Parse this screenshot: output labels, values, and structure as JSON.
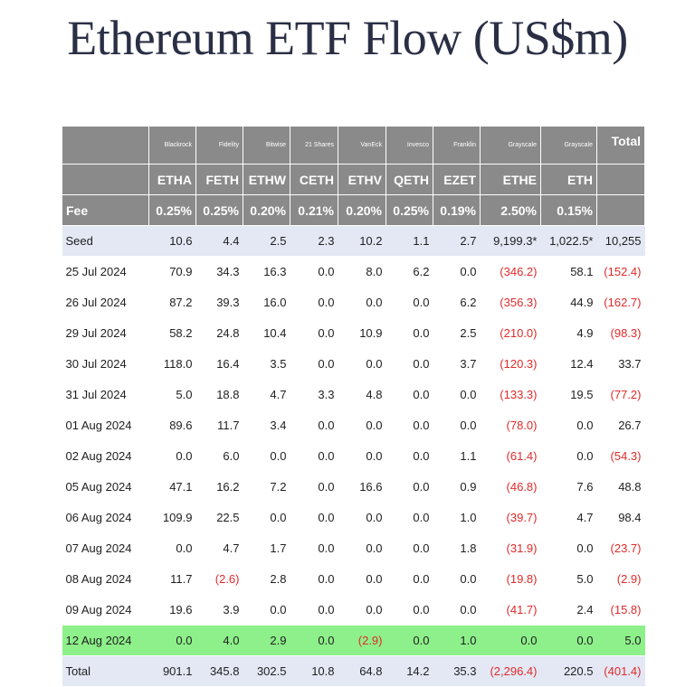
{
  "title": "Ethereum ETF Flow (US$m)",
  "table": {
    "issuers": [
      "Blackrock",
      "Fidelity",
      "Bitwise",
      "21 Shares",
      "VanEck",
      "Invesco",
      "Franklin",
      "Grayscale",
      "Grayscale"
    ],
    "total_header": "Total",
    "tickers": [
      "ETHA",
      "FETH",
      "ETHW",
      "CETH",
      "ETHV",
      "QETH",
      "EZET",
      "ETHE",
      "ETH"
    ],
    "fee_label": "Fee",
    "fees": [
      "0.25%",
      "0.25%",
      "0.20%",
      "0.21%",
      "0.20%",
      "0.25%",
      "0.19%",
      "2.50%",
      "0.15%"
    ],
    "rows": [
      {
        "label": "Seed",
        "values": [
          "10.6",
          "4.4",
          "2.5",
          "2.3",
          "10.2",
          "1.1",
          "2.7",
          "9,199.3*",
          "1,022.5*",
          "10,255"
        ]
      },
      {
        "label": "25 Jul 2024",
        "values": [
          "70.9",
          "34.3",
          "16.3",
          "0.0",
          "8.0",
          "6.2",
          "0.0",
          "(346.2)",
          "58.1",
          "(152.4)"
        ]
      },
      {
        "label": "26 Jul 2024",
        "values": [
          "87.2",
          "39.3",
          "16.0",
          "0.0",
          "0.0",
          "0.0",
          "6.2",
          "(356.3)",
          "44.9",
          "(162.7)"
        ]
      },
      {
        "label": "29 Jul 2024",
        "values": [
          "58.2",
          "24.8",
          "10.4",
          "0.0",
          "10.9",
          "0.0",
          "2.5",
          "(210.0)",
          "4.9",
          "(98.3)"
        ]
      },
      {
        "label": "30 Jul 2024",
        "values": [
          "118.0",
          "16.4",
          "3.5",
          "0.0",
          "0.0",
          "0.0",
          "3.7",
          "(120.3)",
          "12.4",
          "33.7"
        ]
      },
      {
        "label": "31 Jul 2024",
        "values": [
          "5.0",
          "18.8",
          "4.7",
          "3.3",
          "4.8",
          "0.0",
          "0.0",
          "(133.3)",
          "19.5",
          "(77.2)"
        ]
      },
      {
        "label": "01 Aug 2024",
        "values": [
          "89.6",
          "11.7",
          "3.4",
          "0.0",
          "0.0",
          "0.0",
          "0.0",
          "(78.0)",
          "0.0",
          "26.7"
        ]
      },
      {
        "label": "02 Aug 2024",
        "values": [
          "0.0",
          "6.0",
          "0.0",
          "0.0",
          "0.0",
          "0.0",
          "1.1",
          "(61.4)",
          "0.0",
          "(54.3)"
        ]
      },
      {
        "label": "05 Aug 2024",
        "values": [
          "47.1",
          "16.2",
          "7.2",
          "0.0",
          "16.6",
          "0.0",
          "0.9",
          "(46.8)",
          "7.6",
          "48.8"
        ]
      },
      {
        "label": "06 Aug 2024",
        "values": [
          "109.9",
          "22.5",
          "0.0",
          "0.0",
          "0.0",
          "0.0",
          "1.0",
          "(39.7)",
          "4.7",
          "98.4"
        ]
      },
      {
        "label": "07 Aug 2024",
        "values": [
          "0.0",
          "4.7",
          "1.7",
          "0.0",
          "0.0",
          "0.0",
          "1.8",
          "(31.9)",
          "0.0",
          "(23.7)"
        ]
      },
      {
        "label": "08 Aug 2024",
        "values": [
          "11.7",
          "(2.6)",
          "2.8",
          "0.0",
          "0.0",
          "0.0",
          "0.0",
          "(19.8)",
          "5.0",
          "(2.9)"
        ]
      },
      {
        "label": "09 Aug 2024",
        "values": [
          "19.6",
          "3.9",
          "0.0",
          "0.0",
          "0.0",
          "0.0",
          "0.0",
          "(41.7)",
          "2.4",
          "(15.8)"
        ]
      },
      {
        "label": "12 Aug 2024",
        "values": [
          "0.0",
          "4.0",
          "2.9",
          "0.0",
          "(2.9)",
          "0.0",
          "1.0",
          "0.0",
          "0.0",
          "5.0"
        ]
      },
      {
        "label": "Total",
        "values": [
          "901.1",
          "345.8",
          "302.5",
          "10.8",
          "64.8",
          "14.2",
          "35.3",
          "(2,296.4)",
          "220.5",
          "(401.4)"
        ]
      }
    ]
  },
  "colors": {
    "header_bg": "#8a8a8a",
    "seed_total_bg": "#e3e8f4",
    "highlight_bg": "#8df08a",
    "negative": "#e02a2a",
    "title": "#2a2f45"
  }
}
